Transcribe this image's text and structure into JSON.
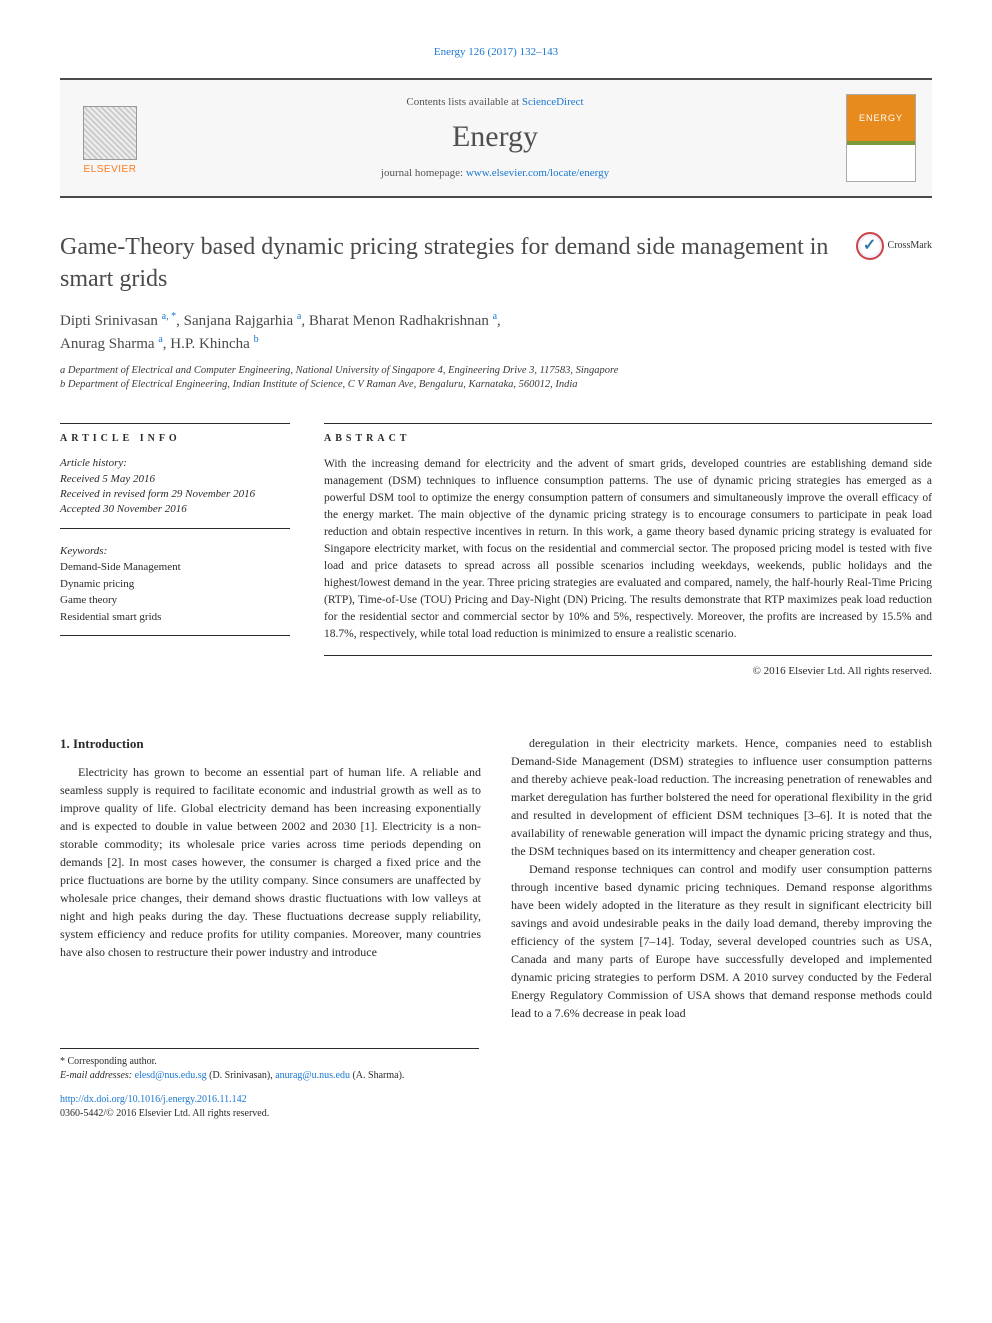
{
  "header": {
    "citation": "Energy 126 (2017) 132–143",
    "contents_prefix": "Contents lists available at ",
    "contents_link": "ScienceDirect",
    "journal": "Energy",
    "homepage_prefix": "journal homepage: ",
    "homepage_link": "www.elsevier.com/locate/energy",
    "publisher_logo": "ELSEVIER",
    "cover_label": "ENERGY"
  },
  "title": "Game-Theory based dynamic pricing strategies for demand side management in smart grids",
  "crossmark": "CrossMark",
  "authors_html": "Dipti Srinivasan a, *, Sanjana Rajgarhia a, Bharat Menon Radhakrishnan a, Anurag Sharma a, H.P. Khincha b",
  "authors": [
    {
      "name": "Dipti Srinivasan",
      "aff": "a, *"
    },
    {
      "name": "Sanjana Rajgarhia",
      "aff": "a"
    },
    {
      "name": "Bharat Menon Radhakrishnan",
      "aff": "a"
    },
    {
      "name": "Anurag Sharma",
      "aff": "a"
    },
    {
      "name": "H.P. Khincha",
      "aff": "b"
    }
  ],
  "affiliations": {
    "a": "a Department of Electrical and Computer Engineering, National University of Singapore 4, Engineering Drive 3, 117583, Singapore",
    "b": "b Department of Electrical Engineering, Indian Institute of Science, C V Raman Ave, Bengaluru, Karnataka, 560012, India"
  },
  "article_info": {
    "heading": "ARTICLE INFO",
    "history_label": "Article history:",
    "received": "Received 5 May 2016",
    "revised": "Received in revised form 29 November 2016",
    "accepted": "Accepted 30 November 2016",
    "keywords_label": "Keywords:",
    "keywords": [
      "Demand-Side Management",
      "Dynamic pricing",
      "Game theory",
      "Residential smart grids"
    ]
  },
  "abstract": {
    "heading": "ABSTRACT",
    "text": "With the increasing demand for electricity and the advent of smart grids, developed countries are establishing demand side management (DSM) techniques to influence consumption patterns. The use of dynamic pricing strategies has emerged as a powerful DSM tool to optimize the energy consumption pattern of consumers and simultaneously improve the overall efficacy of the energy market. The main objective of the dynamic pricing strategy is to encourage consumers to participate in peak load reduction and obtain respective incentives in return. In this work, a game theory based dynamic pricing strategy is evaluated for Singapore electricity market, with focus on the residential and commercial sector. The proposed pricing model is tested with five load and price datasets to spread across all possible scenarios including weekdays, weekends, public holidays and the highest/lowest demand in the year. Three pricing strategies are evaluated and compared, namely, the half-hourly Real-Time Pricing (RTP), Time-of-Use (TOU) Pricing and Day-Night (DN) Pricing. The results demonstrate that RTP maximizes peak load reduction for the residential sector and commercial sector by 10% and 5%, respectively. Moreover, the profits are increased by 15.5% and 18.7%, respectively, while total load reduction is minimized to ensure a realistic scenario.",
    "copyright": "© 2016 Elsevier Ltd. All rights reserved."
  },
  "body": {
    "section_heading": "1. Introduction",
    "col1_p1": "Electricity has grown to become an essential part of human life. A reliable and seamless supply is required to facilitate economic and industrial growth as well as to improve quality of life. Global electricity demand has been increasing exponentially and is expected to double in value between 2002 and 2030 [1]. Electricity is a non-storable commodity; its wholesale price varies across time periods depending on demands [2]. In most cases however, the consumer is charged a fixed price and the price fluctuations are borne by the utility company. Since consumers are unaffected by wholesale price changes, their demand shows drastic fluctuations with low valleys at night and high peaks during the day. These fluctuations decrease supply reliability, system efficiency and reduce profits for utility companies. Moreover, many countries have also chosen to restructure their power industry and introduce",
    "col2_p1": "deregulation in their electricity markets. Hence, companies need to establish Demand-Side Management (DSM) strategies to influence user consumption patterns and thereby achieve peak-load reduction. The increasing penetration of renewables and market deregulation has further bolstered the need for operational flexibility in the grid and resulted in development of efficient DSM techniques [3–6]. It is noted that the availability of renewable generation will impact the dynamic pricing strategy and thus, the DSM techniques based on its intermittency and cheaper generation cost.",
    "col2_p2": "Demand response techniques can control and modify user consumption patterns through incentive based dynamic pricing techniques. Demand response algorithms have been widely adopted in the literature as they result in significant electricity bill savings and avoid undesirable peaks in the daily load demand, thereby improving the efficiency of the system [7–14]. Today, several developed countries such as USA, Canada and many parts of Europe have successfully developed and implemented dynamic pricing strategies to perform DSM. A 2010 survey conducted by the Federal Energy Regulatory Commission of USA shows that demand response methods could lead to a 7.6% decrease in peak load"
  },
  "footnotes": {
    "corr": "* Corresponding author.",
    "email_label": "E-mail addresses:",
    "email1": "elesd@nus.edu.sg",
    "email1_who": "(D. Srinivasan),",
    "email2": "anurag@u.nus.edu",
    "email2_who": "(A. Sharma).",
    "doi": "http://dx.doi.org/10.1016/j.energy.2016.11.142",
    "issn_line": "0360-5442/© 2016 Elsevier Ltd. All rights reserved."
  },
  "colors": {
    "link": "#1976d2",
    "accent_orange": "#ff7a1a",
    "text": "#2a2a2a",
    "border": "#2a2a2a",
    "banner_bg": "#f7f7f7"
  },
  "typography": {
    "title_fontsize": 24,
    "journal_fontsize": 30,
    "body_fontsize": 12,
    "abstract_fontsize": 11.5
  }
}
